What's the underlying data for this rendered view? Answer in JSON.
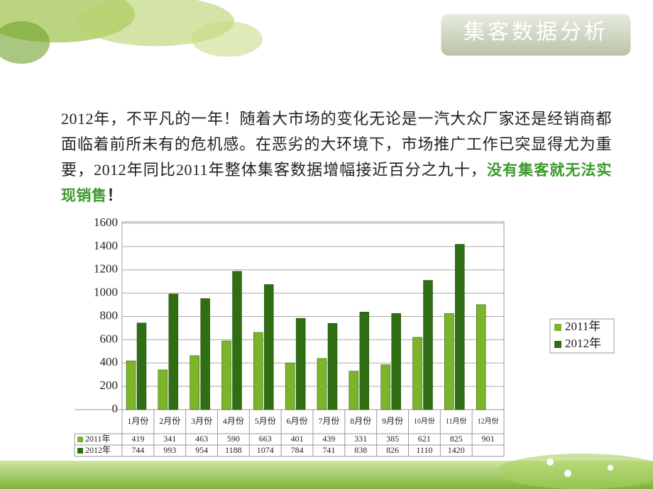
{
  "header": {
    "title": "集客数据分析"
  },
  "paragraph": {
    "text": "2012年，不平凡的一年！随着大市场的变化无论是一汽大众厂家还是经销商都面临着前所未有的危机感。在恶劣的大环境下，市场推广工作已突显得尤为重要，2012年同比2011年整体集客数据增幅接近百分之九十，",
    "highlight": "没有集客就无法实现销售",
    "end": "！"
  },
  "chart_data": {
    "type": "bar",
    "categories": [
      "1月份",
      "2月份",
      "3月份",
      "4月份",
      "5月份",
      "6月份",
      "7月份",
      "8月份",
      "9月份",
      "10月份",
      "11月份",
      "12月份"
    ],
    "series": [
      {
        "name": "2011年",
        "color": "#7db52a",
        "values": [
          419,
          341,
          463,
          590,
          663,
          401,
          439,
          331,
          385,
          621,
          825,
          901
        ]
      },
      {
        "name": "2012年",
        "color": "#2f6e12",
        "values": [
          744,
          993,
          954,
          1188,
          1074,
          784,
          741,
          838,
          826,
          1110,
          1420,
          null
        ]
      }
    ],
    "ylim": [
      0,
      1600
    ],
    "yticks": [
      0,
      200,
      400,
      600,
      800,
      1000,
      1200,
      1400,
      1600
    ],
    "grid": true,
    "legend": "right"
  }
}
